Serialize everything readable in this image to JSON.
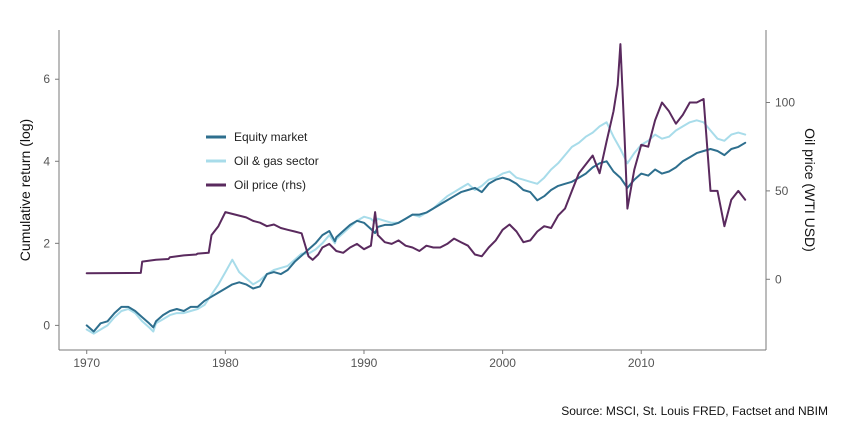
{
  "chart_data": {
    "type": "line",
    "xlabel": "",
    "ylabel": "Cumulative return (log)",
    "y2label": "Oil price (WTI USD)",
    "xlim": [
      1968,
      2019
    ],
    "ylim": [
      -0.6,
      7.2
    ],
    "y2lim": [
      -40,
      141
    ],
    "x_ticks": [
      1970,
      1980,
      1990,
      2000,
      2010
    ],
    "x_tick_labels": [
      "1970",
      "1980",
      "1990",
      "2000",
      "2010"
    ],
    "y_ticks": [
      0,
      2,
      4,
      6
    ],
    "y_tick_labels": [
      "0",
      "2",
      "4",
      "6"
    ],
    "y2_ticks": [
      0,
      50,
      100
    ],
    "y2_tick_labels": [
      "0",
      "50",
      "100"
    ],
    "grid": false,
    "legend_position": "upper-left-inside",
    "source": "Source: MSCI, St. Louis FRED, Factset and NBIM",
    "colors": {
      "equity": "#2e6f8e",
      "oilgas": "#a8dcea",
      "oil": "#5a2a5e",
      "axis": "#7a7a7a"
    },
    "series": [
      {
        "name": "Equity market",
        "axis": "left",
        "color": "#2e6f8e",
        "x": [
          1970,
          1970.5,
          1971,
          1971.5,
          1972,
          1972.5,
          1973,
          1973.5,
          1974,
          1974.5,
          1974.8,
          1975,
          1975.5,
          1976,
          1976.5,
          1977,
          1977.5,
          1978,
          1978.5,
          1979,
          1979.5,
          1980,
          1980.5,
          1981,
          1981.5,
          1982,
          1982.5,
          1983,
          1983.5,
          1984,
          1984.5,
          1985,
          1985.5,
          1986,
          1986.5,
          1987,
          1987.5,
          1987.9,
          1988,
          1988.5,
          1989,
          1989.5,
          1990,
          1990.5,
          1990.8,
          1991,
          1991.5,
          1992,
          1992.5,
          1993,
          1993.5,
          1994,
          1994.5,
          1995,
          1995.5,
          1996,
          1996.5,
          1997,
          1997.5,
          1998,
          1998.5,
          1999,
          1999.5,
          2000,
          2000.5,
          2001,
          2001.5,
          2002,
          2002.5,
          2003,
          2003.5,
          2004,
          2004.5,
          2005,
          2005.5,
          2006,
          2006.5,
          2007,
          2007.5,
          2008,
          2008.5,
          2009,
          2009.5,
          2010,
          2010.5,
          2011,
          2011.5,
          2012,
          2012.5,
          2013,
          2013.5,
          2014,
          2014.5,
          2015,
          2015.5,
          2016,
          2016.5,
          2017,
          2017.5
        ],
        "y": [
          0.0,
          -0.15,
          0.05,
          0.1,
          0.3,
          0.45,
          0.45,
          0.35,
          0.2,
          0.05,
          -0.05,
          0.1,
          0.25,
          0.35,
          0.4,
          0.35,
          0.45,
          0.45,
          0.6,
          0.7,
          0.8,
          0.9,
          1.0,
          1.05,
          1.0,
          0.9,
          0.95,
          1.25,
          1.3,
          1.25,
          1.35,
          1.55,
          1.7,
          1.85,
          2.0,
          2.2,
          2.3,
          2.05,
          2.15,
          2.3,
          2.45,
          2.55,
          2.5,
          2.35,
          2.25,
          2.4,
          2.45,
          2.45,
          2.5,
          2.6,
          2.7,
          2.7,
          2.75,
          2.85,
          2.95,
          3.05,
          3.15,
          3.25,
          3.3,
          3.35,
          3.25,
          3.45,
          3.55,
          3.6,
          3.55,
          3.45,
          3.3,
          3.25,
          3.05,
          3.15,
          3.3,
          3.4,
          3.45,
          3.5,
          3.6,
          3.7,
          3.85,
          3.95,
          4.0,
          3.75,
          3.6,
          3.35,
          3.55,
          3.7,
          3.65,
          3.8,
          3.7,
          3.75,
          3.85,
          4.0,
          4.1,
          4.2,
          4.25,
          4.3,
          4.25,
          4.15,
          4.3,
          4.35,
          4.45
        ]
      },
      {
        "name": "Oil & gas sector",
        "axis": "left",
        "color": "#a8dcea",
        "x": [
          1970,
          1970.5,
          1971,
          1971.5,
          1972,
          1972.5,
          1973,
          1973.5,
          1974,
          1974.5,
          1974.8,
          1975,
          1975.5,
          1976,
          1976.5,
          1977,
          1977.5,
          1978,
          1978.5,
          1979,
          1979.5,
          1980,
          1980.5,
          1981,
          1981.5,
          1982,
          1982.5,
          1983,
          1983.5,
          1984,
          1984.5,
          1985,
          1985.5,
          1986,
          1986.5,
          1987,
          1987.5,
          1987.9,
          1988,
          1988.5,
          1989,
          1989.5,
          1990,
          1990.5,
          1990.8,
          1991,
          1991.5,
          1992,
          1992.5,
          1993,
          1993.5,
          1994,
          1994.5,
          1995,
          1995.5,
          1996,
          1996.5,
          1997,
          1997.5,
          1998,
          1998.5,
          1999,
          1999.5,
          2000,
          2000.5,
          2001,
          2001.5,
          2002,
          2002.5,
          2003,
          2003.5,
          2004,
          2004.5,
          2005,
          2005.5,
          2006,
          2006.5,
          2007,
          2007.5,
          2008,
          2008.5,
          2009,
          2009.5,
          2010,
          2010.5,
          2011,
          2011.5,
          2012,
          2012.5,
          2013,
          2013.5,
          2014,
          2014.5,
          2015,
          2015.5,
          2016,
          2016.5,
          2017,
          2017.5
        ],
        "y": [
          -0.1,
          -0.2,
          -0.1,
          0.0,
          0.2,
          0.35,
          0.4,
          0.3,
          0.1,
          -0.05,
          -0.15,
          0.05,
          0.15,
          0.25,
          0.3,
          0.3,
          0.35,
          0.4,
          0.5,
          0.75,
          1.0,
          1.3,
          1.6,
          1.3,
          1.15,
          1.0,
          1.1,
          1.25,
          1.35,
          1.4,
          1.45,
          1.6,
          1.75,
          1.75,
          1.85,
          2.0,
          2.2,
          2.0,
          2.1,
          2.25,
          2.4,
          2.55,
          2.65,
          2.6,
          2.5,
          2.6,
          2.55,
          2.5,
          2.5,
          2.6,
          2.7,
          2.65,
          2.75,
          2.85,
          3.0,
          3.15,
          3.25,
          3.35,
          3.45,
          3.3,
          3.4,
          3.55,
          3.6,
          3.7,
          3.75,
          3.6,
          3.55,
          3.5,
          3.45,
          3.6,
          3.8,
          3.95,
          4.15,
          4.35,
          4.45,
          4.6,
          4.7,
          4.85,
          4.95,
          4.6,
          4.3,
          3.95,
          4.2,
          4.4,
          4.5,
          4.65,
          4.55,
          4.6,
          4.75,
          4.85,
          4.95,
          5.0,
          4.95,
          4.75,
          4.55,
          4.5,
          4.65,
          4.7,
          4.65
        ]
      },
      {
        "name": "Oil price (rhs)",
        "axis": "right",
        "color": "#5a2a5e",
        "x": [
          1970,
          1973.9,
          1974,
          1975,
          1975.9,
          1976,
          1977,
          1977.9,
          1978,
          1978.8,
          1979,
          1979.5,
          1980,
          1980.5,
          1981,
          1981.5,
          1982,
          1982.5,
          1983,
          1983.5,
          1984,
          1984.5,
          1985,
          1985.5,
          1986,
          1986.3,
          1986.7,
          1987,
          1987.5,
          1988,
          1988.5,
          1989,
          1989.5,
          1990,
          1990.5,
          1990.8,
          1991,
          1991.5,
          1992,
          1992.5,
          1993,
          1993.5,
          1994,
          1994.5,
          1995,
          1995.5,
          1996,
          1996.5,
          1997,
          1997.5,
          1998,
          1998.5,
          1999,
          1999.5,
          2000,
          2000.5,
          2001,
          2001.5,
          2002,
          2002.5,
          2003,
          2003.5,
          2004,
          2004.5,
          2005,
          2005.5,
          2006,
          2006.5,
          2007,
          2007.5,
          2008,
          2008.3,
          2008.5,
          2008.8,
          2009,
          2009.5,
          2010,
          2010.5,
          2011,
          2011.5,
          2012,
          2012.5,
          2013,
          2013.5,
          2014,
          2014.5,
          2015,
          2015.5,
          2016,
          2016.5,
          2017,
          2017.5
        ],
        "y": [
          3.4,
          3.6,
          10,
          11,
          11.5,
          12.5,
          13.5,
          14,
          14.5,
          15,
          25,
          30,
          38,
          37,
          36,
          35,
          33,
          32,
          30,
          31,
          29,
          28,
          27,
          26,
          13,
          11,
          14,
          18,
          20,
          16,
          15,
          18,
          20,
          17,
          19,
          38,
          25,
          21,
          20,
          22,
          19,
          18,
          16,
          19,
          18,
          18,
          20,
          23,
          21,
          19,
          14,
          13,
          18,
          22,
          28,
          31,
          27,
          21,
          22,
          27,
          30,
          29,
          36,
          40,
          50,
          60,
          65,
          70,
          60,
          78,
          95,
          110,
          133,
          80,
          40,
          62,
          76,
          75,
          90,
          100,
          95,
          88,
          93,
          100,
          100,
          102,
          50,
          50,
          30,
          45,
          50,
          45
        ]
      }
    ]
  }
}
